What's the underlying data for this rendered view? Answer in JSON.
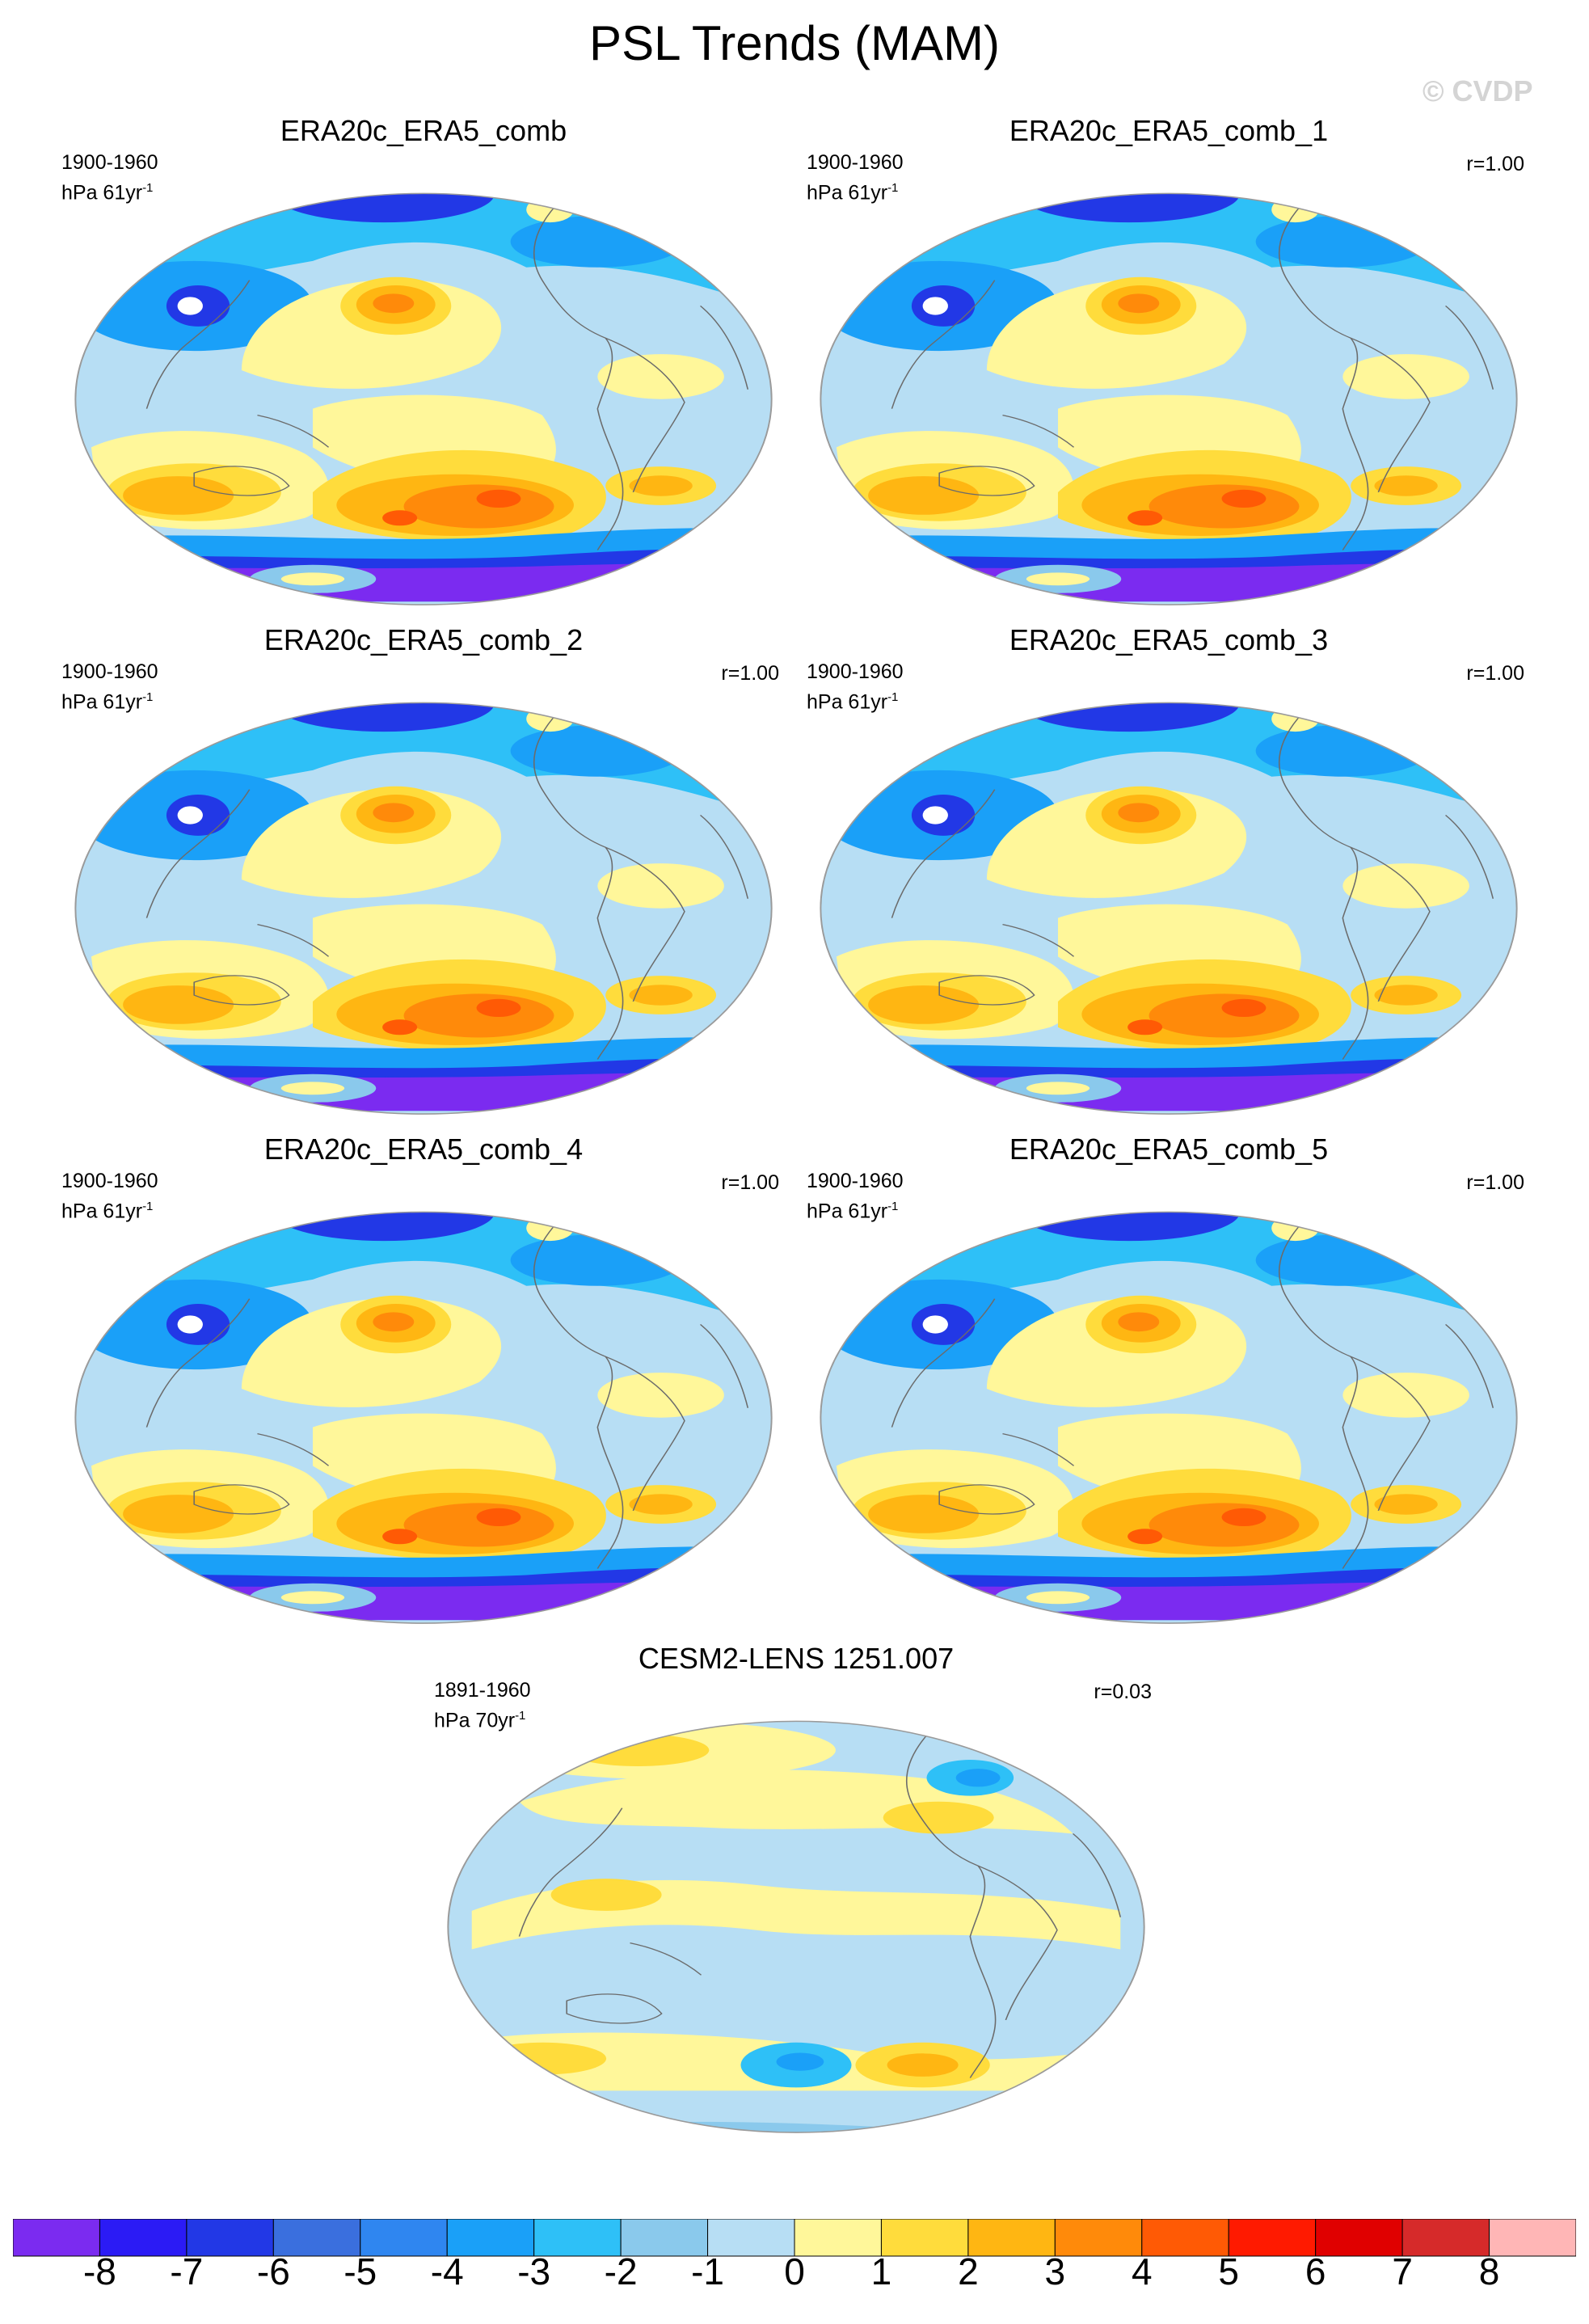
{
  "title": "PSL Trends (MAM)",
  "watermark": "© CVDP",
  "panels": [
    {
      "title": "ERA20c_ERA5_comb",
      "years": "1900-1960",
      "units": "hPa 61yr",
      "exp": "-1",
      "r": ""
    },
    {
      "title": "ERA20c_ERA5_comb_1",
      "years": "1900-1960",
      "units": "hPa 61yr",
      "exp": "-1",
      "r": "r=1.00"
    },
    {
      "title": "ERA20c_ERA5_comb_2",
      "years": "1900-1960",
      "units": "hPa 61yr",
      "exp": "-1",
      "r": "r=1.00"
    },
    {
      "title": "ERA20c_ERA5_comb_3",
      "years": "1900-1960",
      "units": "hPa 61yr",
      "exp": "-1",
      "r": "r=1.00"
    },
    {
      "title": "ERA20c_ERA5_comb_4",
      "years": "1900-1960",
      "units": "hPa 61yr",
      "exp": "-1",
      "r": "r=1.00"
    },
    {
      "title": "ERA20c_ERA5_comb_5",
      "years": "1900-1960",
      "units": "hPa 61yr",
      "exp": "-1",
      "r": "r=1.00"
    },
    {
      "title": "CESM2-LENS 1251.007",
      "years": "1891-1960",
      "units": "hPa 70yr",
      "exp": "-1",
      "r": "r=0.03"
    }
  ],
  "colorbar": {
    "labels": [
      "-8",
      "-7",
      "-6",
      "-5",
      "-4",
      "-3",
      "-2",
      "-1",
      "0",
      "1",
      "2",
      "3",
      "4",
      "5",
      "6",
      "7",
      "8"
    ],
    "colors": [
      "#7b2bf0",
      "#2b1bf5",
      "#2238e6",
      "#3a6fde",
      "#2f86f0",
      "#1aa0f8",
      "#2ec0f7",
      "#8ac9ec",
      "#b7def4",
      "#fff79a",
      "#ffdc3c",
      "#ffb612",
      "#ff8a0a",
      "#ff5a05",
      "#ff1a00",
      "#e00000",
      "#d62a2a",
      "#ffb6b6"
    ]
  },
  "palette": {
    "ocean_neutral": "#b7def4",
    "light_yellow": "#fff79a",
    "light_blue": "#8ac9ec",
    "mid_blue": "#2ec0f7",
    "blue": "#1aa0f8",
    "dark_blue": "#2238e6",
    "violet": "#7b2bf0",
    "yellow": "#ffdc3c",
    "orange": "#ffb612",
    "dark_orange": "#ff8a0a",
    "red_orange": "#ff5a05",
    "coast": "#6b6b6b",
    "outline": "#9a9a9a"
  }
}
